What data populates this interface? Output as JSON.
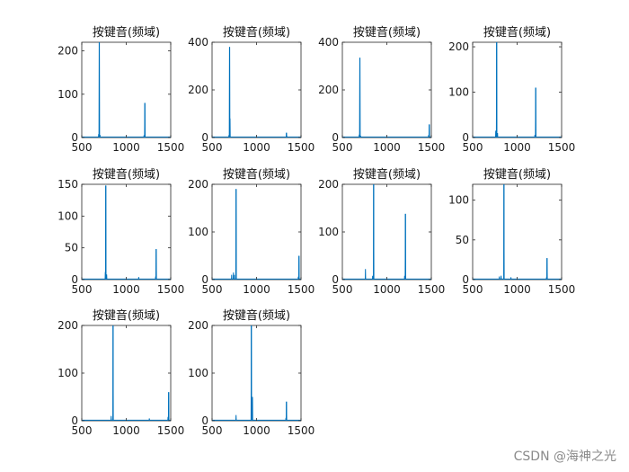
{
  "watermark": "CSDN @海神之光",
  "colors": {
    "series": "#0072BD",
    "axis": "#262626"
  },
  "chart_data": [
    {
      "type": "line",
      "title": "按键音(频域)",
      "xlim": [
        500,
        1500
      ],
      "ylim": [
        0,
        220
      ],
      "xticks": [
        500,
        1000,
        1500
      ],
      "yticks": [
        0,
        100,
        200
      ],
      "peaks": [
        [
          697,
          220
        ],
        [
          1209,
          80
        ]
      ],
      "noise": [
        [
          690,
          8
        ],
        [
          705,
          6
        ],
        [
          1200,
          5
        ]
      ]
    },
    {
      "type": "line",
      "title": "按键音(频域)",
      "xlim": [
        500,
        1500
      ],
      "ylim": [
        0,
        400
      ],
      "xticks": [
        500,
        1000,
        1500
      ],
      "yticks": [
        0,
        200,
        400
      ],
      "peaks": [
        [
          697,
          380
        ],
        [
          1336,
          20
        ]
      ],
      "noise": [
        [
          702,
          80
        ],
        [
          690,
          10
        ],
        [
          1340,
          6
        ]
      ]
    },
    {
      "type": "line",
      "title": "按键音(频域)",
      "xlim": [
        500,
        1500
      ],
      "ylim": [
        0,
        400
      ],
      "xticks": [
        500,
        1000,
        1500
      ],
      "yticks": [
        0,
        200,
        400
      ],
      "peaks": [
        [
          697,
          335
        ],
        [
          1477,
          55
        ]
      ],
      "noise": [
        [
          690,
          12
        ],
        [
          705,
          8
        ],
        [
          1470,
          10
        ]
      ]
    },
    {
      "type": "line",
      "title": "按键音(频域)",
      "xlim": [
        500,
        1500
      ],
      "ylim": [
        0,
        210
      ],
      "xticks": [
        500,
        1000,
        1500
      ],
      "yticks": [
        0,
        100,
        200
      ],
      "peaks": [
        [
          770,
          210
        ],
        [
          1209,
          110
        ]
      ],
      "noise": [
        [
          760,
          15
        ],
        [
          780,
          10
        ],
        [
          1200,
          6
        ]
      ]
    },
    {
      "type": "line",
      "title": "按键音(频域)",
      "xlim": [
        500,
        1500
      ],
      "ylim": [
        0,
        150
      ],
      "xticks": [
        500,
        1000,
        1500
      ],
      "yticks": [
        0,
        50,
        100,
        150
      ],
      "peaks": [
        [
          770,
          148
        ],
        [
          1336,
          48
        ]
      ],
      "noise": [
        [
          765,
          12
        ],
        [
          780,
          8
        ],
        [
          1140,
          4
        ],
        [
          1330,
          5
        ]
      ]
    },
    {
      "type": "line",
      "title": "按键音(频域)",
      "xlim": [
        500,
        1500
      ],
      "ylim": [
        0,
        200
      ],
      "xticks": [
        500,
        1000,
        1500
      ],
      "yticks": [
        0,
        100,
        200
      ],
      "peaks": [
        [
          770,
          190
        ],
        [
          1477,
          50
        ]
      ],
      "noise": [
        [
          720,
          10
        ],
        [
          740,
          15
        ],
        [
          750,
          10
        ],
        [
          1470,
          6
        ]
      ]
    },
    {
      "type": "line",
      "title": "按键音(频域)",
      "xlim": [
        500,
        1500
      ],
      "ylim": [
        0,
        200
      ],
      "xticks": [
        500,
        1000,
        1500
      ],
      "yticks": [
        0,
        100,
        200
      ],
      "peaks": [
        [
          852,
          200
        ],
        [
          1209,
          138
        ]
      ],
      "noise": [
        [
          760,
          22
        ],
        [
          840,
          8
        ],
        [
          1200,
          8
        ]
      ]
    },
    {
      "type": "line",
      "title": "按键音(频域)",
      "xlim": [
        500,
        1500
      ],
      "ylim": [
        0,
        120
      ],
      "xticks": [
        500,
        1000,
        1500
      ],
      "yticks": [
        0,
        50,
        100
      ],
      "peaks": [
        [
          852,
          120
        ],
        [
          1336,
          27
        ]
      ],
      "noise": [
        [
          800,
          4
        ],
        [
          820,
          5
        ],
        [
          930,
          3
        ],
        [
          1330,
          3
        ]
      ]
    },
    {
      "type": "line",
      "title": "按键音(频域)",
      "xlim": [
        500,
        1500
      ],
      "ylim": [
        0,
        200
      ],
      "xticks": [
        500,
        1000,
        1500
      ],
      "yticks": [
        0,
        100,
        200
      ],
      "peaks": [
        [
          852,
          200
        ],
        [
          1477,
          60
        ]
      ],
      "noise": [
        [
          830,
          10
        ],
        [
          1260,
          5
        ],
        [
          1470,
          8
        ]
      ]
    },
    {
      "type": "line",
      "title": "按键音(频域)",
      "xlim": [
        500,
        1500
      ],
      "ylim": [
        0,
        200
      ],
      "xticks": [
        500,
        1000,
        1500
      ],
      "yticks": [
        0,
        100,
        200
      ],
      "peaks": [
        [
          941,
          200
        ],
        [
          1336,
          40
        ]
      ],
      "noise": [
        [
          770,
          12
        ],
        [
          955,
          50
        ],
        [
          1330,
          6
        ]
      ]
    }
  ]
}
